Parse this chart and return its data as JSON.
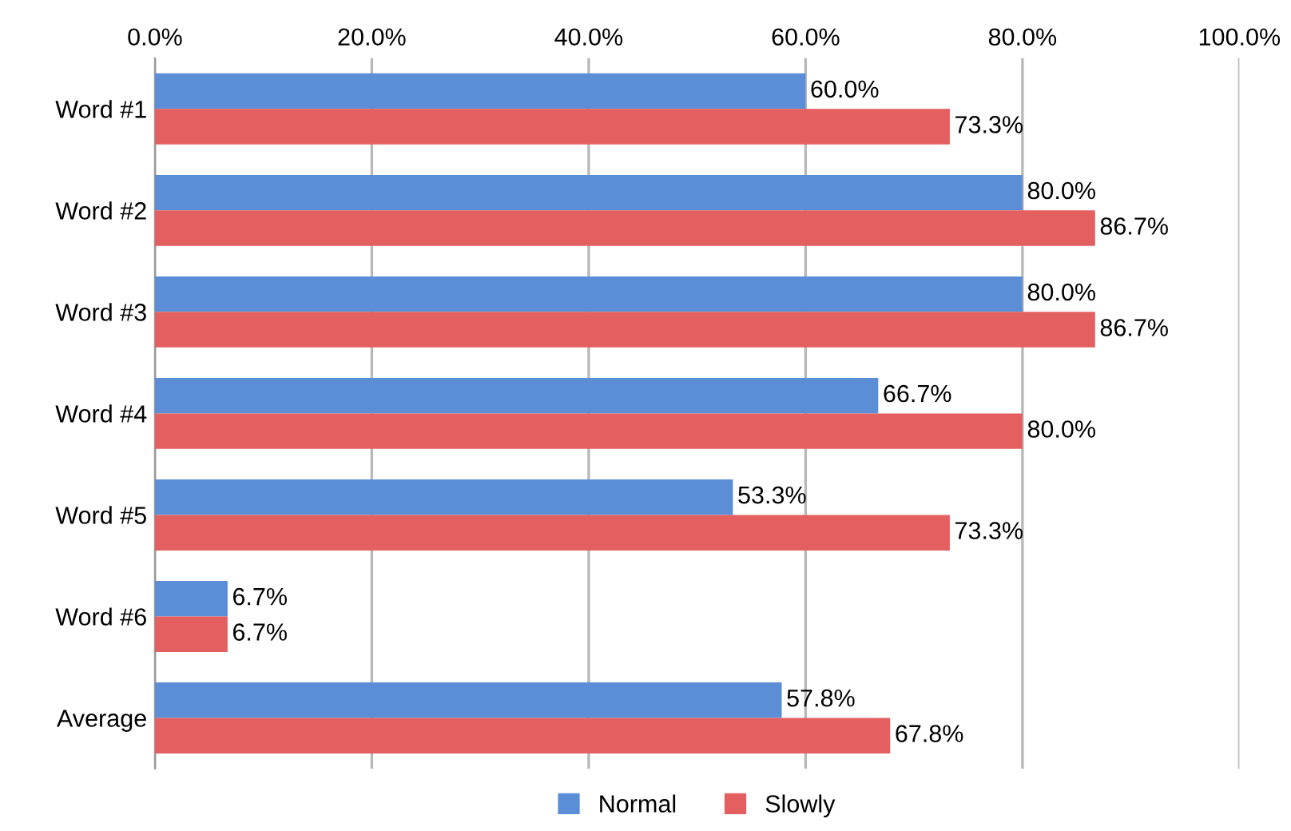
{
  "chart_data": {
    "type": "bar",
    "orientation": "horizontal",
    "categories": [
      "Word #1",
      "Word #2",
      "Word #3",
      "Word #4",
      "Word #5",
      "Word #6",
      "Average"
    ],
    "series": [
      {
        "name": "Normal",
        "color": "#5b8ed6",
        "values": [
          60.0,
          80.0,
          80.0,
          66.7,
          53.3,
          6.7,
          57.8
        ],
        "value_labels": [
          "60.0%",
          "80.0%",
          "80.0%",
          "66.7%",
          "53.3%",
          "6.7%",
          "57.8%"
        ]
      },
      {
        "name": "Slowly",
        "color": "#e45f5f",
        "values": [
          73.3,
          86.7,
          86.7,
          80.0,
          73.3,
          6.7,
          67.8
        ],
        "value_labels": [
          "73.3%",
          "86.7%",
          "86.7%",
          "80.0%",
          "73.3%",
          "6.7%",
          "67.8%"
        ]
      }
    ],
    "xlim": [
      0,
      100
    ],
    "xticks": [
      {
        "value": 0,
        "label": "0.0%"
      },
      {
        "value": 20,
        "label": "20.0%"
      },
      {
        "value": 40,
        "label": "40.0%"
      },
      {
        "value": 60,
        "label": "60.0%"
      },
      {
        "value": 80,
        "label": "80.0%"
      },
      {
        "value": 100,
        "label": "100.0%"
      }
    ],
    "grid": "x",
    "legend": "bottom"
  }
}
